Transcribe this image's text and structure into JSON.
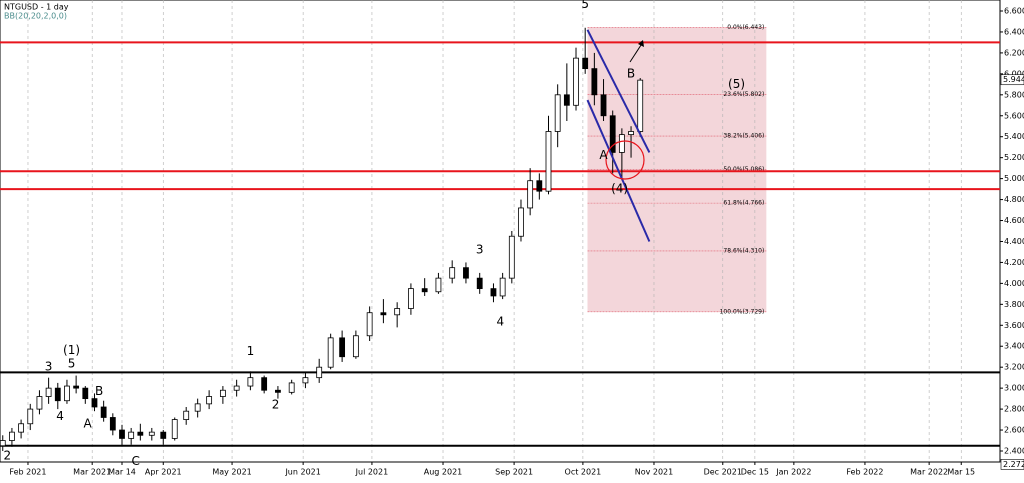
{
  "chart_data": {
    "type": "candlestick",
    "title": "NTGUSD - 1 day",
    "indicator": "BB(20,20,2,0,0)",
    "xlim": [
      18.8,
      454.9
    ],
    "ylim": [
      2.295,
      6.705
    ],
    "xticks": [
      {
        "value": 31,
        "label": "Feb 2021"
      },
      {
        "value": 59,
        "label": "Mar 2021"
      },
      {
        "value": 72,
        "label": "Mar 14"
      },
      {
        "value": 90,
        "label": "Apr 2021"
      },
      {
        "value": 120,
        "label": "May 2021"
      },
      {
        "value": 151,
        "label": "Jun 2021"
      },
      {
        "value": 181,
        "label": "Jul 2021"
      },
      {
        "value": 212,
        "label": "Aug 2021"
      },
      {
        "value": 243,
        "label": "Sep 2021"
      },
      {
        "value": 273,
        "label": "Oct 2021"
      },
      {
        "value": 304,
        "label": "Nov 2021"
      },
      {
        "value": 334,
        "label": "Dec 2021"
      },
      {
        "value": 348,
        "label": "Dec 15"
      },
      {
        "value": 365,
        "label": "Jan 2022"
      },
      {
        "value": 396,
        "label": "Feb 2022"
      },
      {
        "value": 424,
        "label": "Mar 2022"
      },
      {
        "value": 438,
        "label": "Mar 15"
      }
    ],
    "yticks": [
      {
        "value": 2.4,
        "label": "2.400"
      },
      {
        "value": 2.6,
        "label": "2.600"
      },
      {
        "value": 2.8,
        "label": "2.800"
      },
      {
        "value": 3.0,
        "label": "3.000"
      },
      {
        "value": 3.2,
        "label": "3.200"
      },
      {
        "value": 3.4,
        "label": "3.400"
      },
      {
        "value": 3.6,
        "label": "3.600"
      },
      {
        "value": 3.8,
        "label": "3.800"
      },
      {
        "value": 4.0,
        "label": "4.000"
      },
      {
        "value": 4.2,
        "label": "4.200"
      },
      {
        "value": 4.4,
        "label": "4.400"
      },
      {
        "value": 4.6,
        "label": "4.600"
      },
      {
        "value": 4.8,
        "label": "4.800"
      },
      {
        "value": 5.0,
        "label": "5.000"
      },
      {
        "value": 5.2,
        "label": "5.200"
      },
      {
        "value": 5.4,
        "label": "5.400"
      },
      {
        "value": 5.6,
        "label": "5.600"
      },
      {
        "value": 5.8,
        "label": "5.800"
      },
      {
        "value": 6.0,
        "label": "6.000"
      },
      {
        "value": 6.2,
        "label": "6.200"
      },
      {
        "value": 6.4,
        "label": "6.400"
      },
      {
        "value": 6.6,
        "label": "6.600"
      }
    ],
    "grid": true,
    "last_price": 5.944,
    "cursor_price": 2.272,
    "x": [
      20,
      24,
      28,
      32,
      36,
      40,
      44,
      48,
      52,
      56,
      60,
      64,
      68,
      72,
      76,
      80,
      85,
      90,
      95,
      100,
      105,
      110,
      116,
      122,
      128,
      134,
      140,
      146,
      152,
      158,
      163,
      168,
      174,
      180,
      186,
      192,
      198,
      204,
      210,
      216,
      222,
      228,
      234,
      238,
      242,
      246,
      250,
      254,
      258,
      262,
      266,
      270,
      274,
      278,
      282,
      286,
      290,
      294,
      298
    ],
    "open": [
      2.45,
      2.5,
      2.58,
      2.66,
      2.8,
      2.92,
      3.0,
      2.88,
      3.02,
      3.0,
      2.9,
      2.82,
      2.72,
      2.6,
      2.52,
      2.58,
      2.55,
      2.58,
      2.52,
      2.7,
      2.78,
      2.85,
      2.92,
      2.98,
      3.02,
      3.1,
      2.98,
      2.96,
      3.05,
      3.1,
      3.2,
      3.48,
      3.3,
      3.5,
      3.72,
      3.7,
      3.76,
      3.95,
      3.92,
      4.05,
      4.15,
      4.05,
      3.95,
      3.88,
      4.05,
      4.45,
      4.72,
      4.98,
      4.88,
      5.45,
      5.8,
      5.7,
      6.15,
      6.05,
      5.8,
      5.6,
      5.25,
      5.42,
      5.45
    ],
    "high": [
      2.55,
      2.62,
      2.7,
      2.85,
      2.98,
      3.1,
      3.05,
      3.08,
      3.12,
      3.02,
      2.95,
      2.88,
      2.76,
      2.65,
      2.62,
      2.66,
      2.62,
      2.6,
      2.72,
      2.82,
      2.9,
      2.98,
      3.02,
      3.08,
      3.16,
      3.12,
      3.02,
      3.08,
      3.15,
      3.28,
      3.52,
      3.55,
      3.55,
      3.78,
      3.85,
      3.82,
      4.0,
      4.05,
      4.1,
      4.22,
      4.2,
      4.1,
      4.0,
      4.1,
      4.5,
      4.8,
      5.1,
      5.05,
      5.6,
      5.9,
      6.1,
      6.25,
      6.44,
      6.2,
      5.95,
      5.65,
      5.48,
      5.5,
      5.96
    ],
    "low": [
      2.4,
      2.44,
      2.52,
      2.6,
      2.75,
      2.85,
      2.8,
      2.85,
      2.95,
      2.85,
      2.78,
      2.68,
      2.55,
      2.45,
      2.46,
      2.5,
      2.5,
      2.46,
      2.5,
      2.65,
      2.72,
      2.8,
      2.85,
      2.92,
      2.98,
      2.95,
      2.9,
      2.94,
      3.0,
      3.05,
      3.18,
      3.25,
      3.28,
      3.45,
      3.62,
      3.58,
      3.7,
      3.88,
      3.9,
      4.0,
      4.0,
      3.9,
      3.82,
      3.85,
      4.0,
      4.4,
      4.65,
      4.8,
      4.85,
      5.3,
      5.55,
      5.65,
      6.0,
      5.7,
      5.55,
      5.05,
      5.0,
      5.2,
      5.4
    ],
    "close": [
      2.5,
      2.58,
      2.66,
      2.8,
      2.92,
      3.0,
      2.88,
      3.02,
      3.0,
      2.9,
      2.82,
      2.72,
      2.6,
      2.52,
      2.58,
      2.55,
      2.58,
      2.52,
      2.7,
      2.78,
      2.85,
      2.92,
      2.98,
      3.02,
      3.1,
      2.98,
      2.96,
      3.05,
      3.1,
      3.2,
      3.48,
      3.3,
      3.5,
      3.72,
      3.7,
      3.76,
      3.95,
      3.92,
      4.05,
      4.15,
      4.05,
      3.95,
      3.88,
      4.05,
      4.45,
      4.72,
      4.98,
      4.88,
      5.45,
      5.8,
      5.7,
      6.15,
      6.05,
      5.8,
      5.6,
      5.25,
      5.42,
      5.45,
      5.94
    ],
    "red_levels": [
      6.3,
      5.07,
      4.9
    ],
    "black_levels": [
      3.15,
      2.45
    ],
    "fib_range_x": [
      275,
      353
    ],
    "fib_levels": [
      {
        "value": 6.443,
        "label": "0.0%(6.443)"
      },
      {
        "value": 5.802,
        "label": "23.6%(5.802)"
      },
      {
        "value": 5.406,
        "label": "38.2%(5.406)"
      },
      {
        "value": 5.086,
        "label": "50.0%(5.086)"
      },
      {
        "value": 4.766,
        "label": "61.8%(4.766)"
      },
      {
        "value": 4.31,
        "label": "78.6%(4.310)"
      },
      {
        "value": 3.729,
        "label": "100.0%(3.729)"
      }
    ],
    "trendlines": [
      {
        "x": [
          275,
          302
        ],
        "y": [
          6.42,
          5.25
        ]
      },
      {
        "x": [
          275,
          302
        ],
        "y": [
          5.75,
          4.4
        ]
      }
    ],
    "annotations": [
      {
        "text": "2",
        "x": 22,
        "y": 2.35
      },
      {
        "text": "3",
        "x": 40,
        "y": 3.2
      },
      {
        "text": "(1)",
        "x": 50,
        "y": 3.36
      },
      {
        "text": "5",
        "x": 50,
        "y": 3.23
      },
      {
        "text": "B",
        "x": 62,
        "y": 2.97
      },
      {
        "text": "A",
        "x": 57,
        "y": 2.66
      },
      {
        "text": "4",
        "x": 45,
        "y": 2.73
      },
      {
        "text": "C",
        "x": 78,
        "y": 2.3
      },
      {
        "text": "1",
        "x": 128,
        "y": 3.35
      },
      {
        "text": "2",
        "x": 139,
        "y": 2.84
      },
      {
        "text": "3",
        "x": 228,
        "y": 4.32
      },
      {
        "text": "4",
        "x": 237,
        "y": 3.63
      },
      {
        "text": "5",
        "x": 274,
        "y": 6.66
      },
      {
        "text": "B",
        "x": 294,
        "y": 6.0
      },
      {
        "text": "A",
        "x": 282,
        "y": 5.22
      },
      {
        "text": "(4)",
        "x": 289,
        "y": 4.9
      },
      {
        "text": "(5)",
        "x": 340,
        "y": 5.9
      }
    ]
  }
}
